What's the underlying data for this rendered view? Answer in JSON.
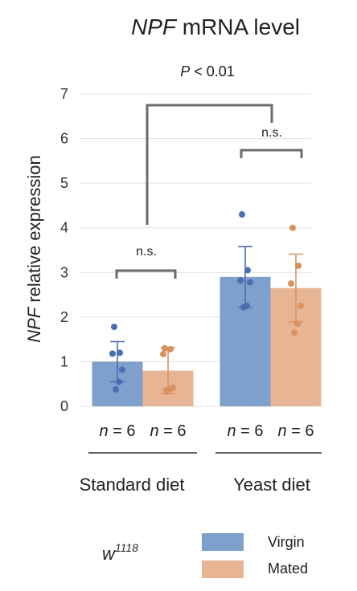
{
  "chart_data": {
    "type": "bar",
    "title_italic": "NPF",
    "title_rest": " mRNA level",
    "ylabel_italic": "NPF",
    "ylabel_rest": " relative expression",
    "ylim": [
      0,
      7
    ],
    "yticks": [
      "0",
      "1",
      "2",
      "3",
      "4",
      "5",
      "6",
      "7"
    ],
    "grid": true,
    "groups": [
      "Standard diet",
      "Yeast diet"
    ],
    "series": [
      {
        "name": "Virgin",
        "color": "#7f9fcc",
        "point_color": "#4a6fb0",
        "values": [
          1.0,
          2.9
        ],
        "error": [
          0.45,
          0.68
        ],
        "points": [
          [
            1.78,
            1.2,
            1.18,
            0.82,
            0.55,
            0.38
          ],
          [
            4.3,
            3.05,
            2.82,
            2.78,
            2.25,
            2.22
          ]
        ]
      },
      {
        "name": "Mated",
        "color": "#e8b594",
        "point_color": "#d9925f",
        "values": [
          0.8,
          2.65
        ],
        "error": [
          0.52,
          0.76
        ],
        "points": [
          [
            1.3,
            1.28,
            1.17,
            0.42,
            0.38,
            0.36
          ],
          [
            4.0,
            3.15,
            2.75,
            2.25,
            1.85,
            1.65
          ]
        ]
      }
    ],
    "n_labels": [
      "n = 6",
      "n = 6",
      "n = 6",
      "n = 6"
    ],
    "comparisons": {
      "between_diets": "P < 0.01",
      "standard_diet": "n.s.",
      "yeast_diet": "n.s."
    },
    "legend_position": "bottom-right",
    "strain_label": "w",
    "strain_superscript": "1118"
  }
}
